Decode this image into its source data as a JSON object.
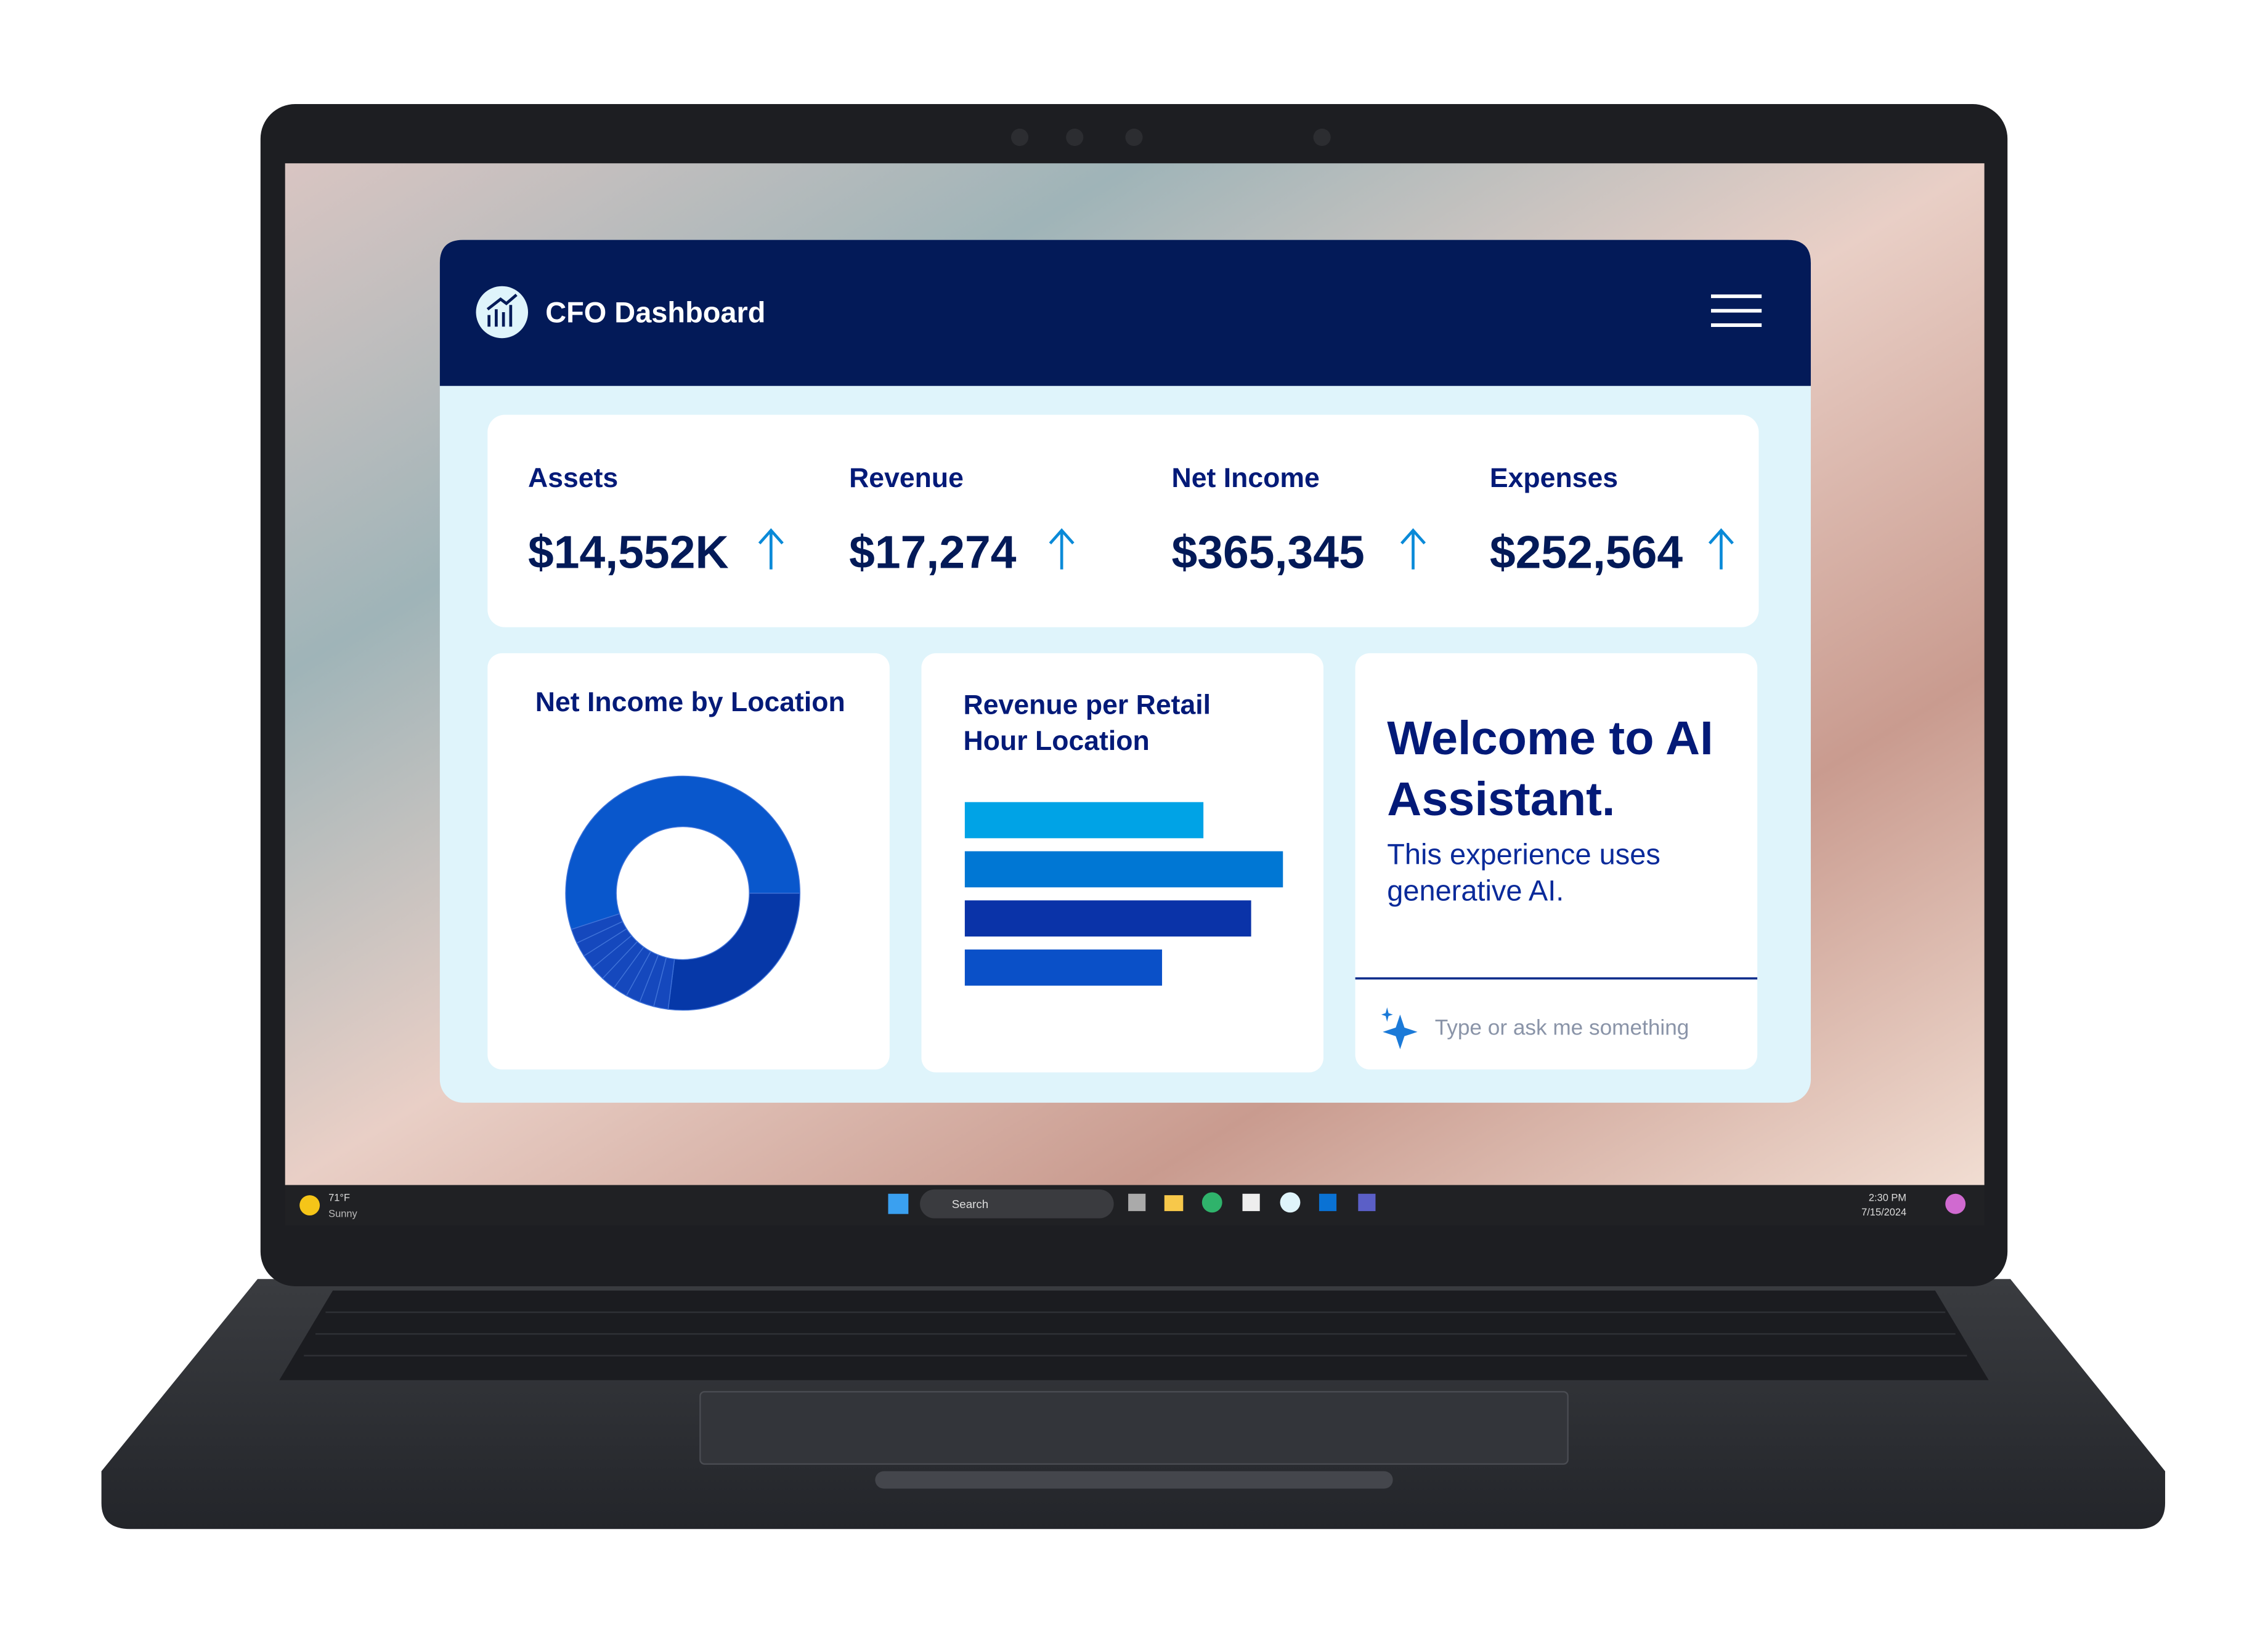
{
  "header": {
    "title": "CFO Dashboard"
  },
  "kpis": [
    {
      "label": "Assets",
      "value": "$14,552K"
    },
    {
      "label": "Revenue",
      "value": "$17,274"
    },
    {
      "label": "Net Income",
      "value": "$365,345"
    },
    {
      "label": "Expenses",
      "value": "$252,564"
    }
  ],
  "chart_data": [
    {
      "type": "pie",
      "title": "Net Income by Location",
      "hole": true,
      "values": [
        27,
        2,
        2,
        2,
        2,
        2,
        2,
        2,
        2,
        2,
        55
      ],
      "colors": [
        "#0638a8",
        "#1548bd",
        "#1548bd",
        "#1548bd",
        "#1548bd",
        "#1548bd",
        "#1548bd",
        "#1548bd",
        "#1548bd",
        "#1548bd",
        "#0957cc"
      ]
    },
    {
      "type": "bar",
      "title": "Revenue per Retail Hour Location",
      "orientation": "horizontal",
      "values": [
        75,
        100,
        90,
        62
      ],
      "xlim": [
        0,
        100
      ],
      "colors": [
        "#00a3e6",
        "#0077d4",
        "#0a33a8",
        "#0a50c8"
      ]
    }
  ],
  "assistant": {
    "title": "Welcome to AI Assistant.",
    "subtitle": "This experience uses generative AI.",
    "placeholder": "Type or ask me something"
  },
  "taskbar": {
    "temperature": "71°F",
    "weather": "Sunny",
    "search": "Search",
    "time": "2:30 PM",
    "date": "7/15/2024"
  }
}
